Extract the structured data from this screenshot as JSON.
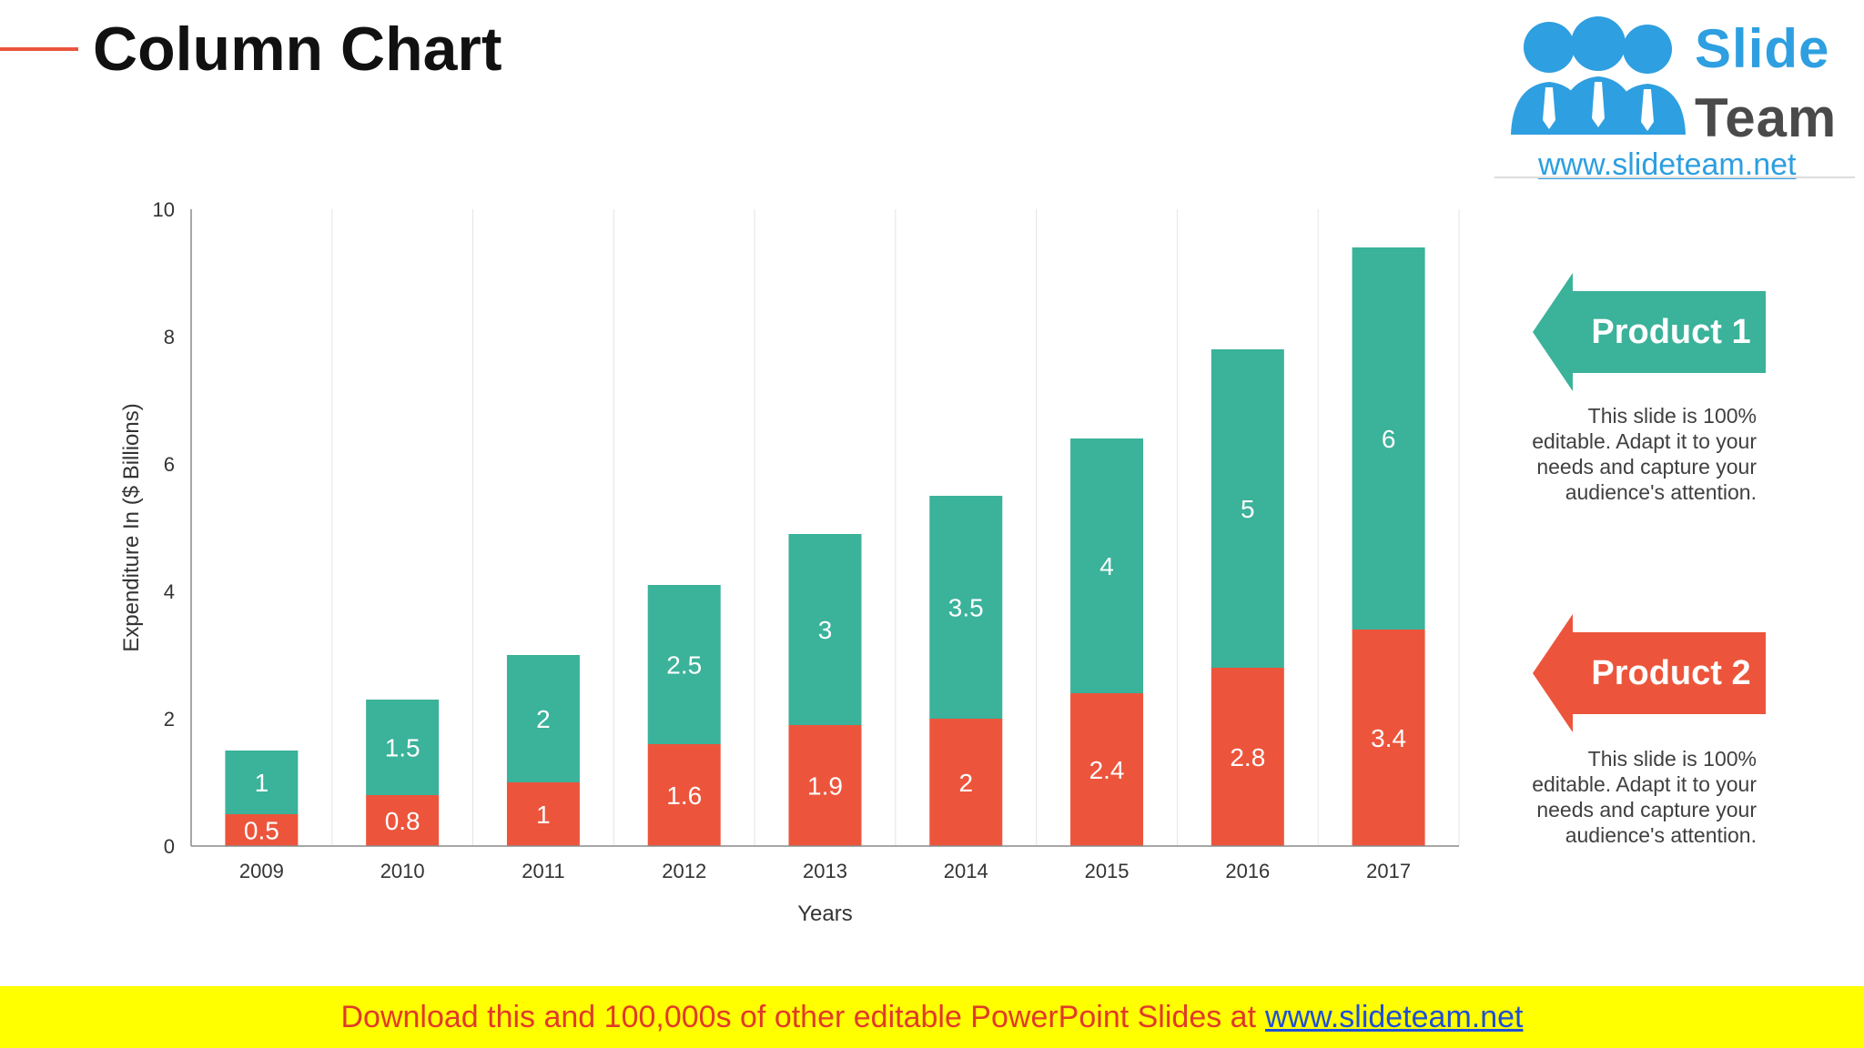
{
  "slide": {
    "title": "Column Chart"
  },
  "logo": {
    "word1": "Slide",
    "word2": "Team",
    "url": "www.slideteam.net"
  },
  "colors": {
    "product1": "#3bb29a",
    "product2": "#ec553c",
    "accent_rule": "#e9553c",
    "banner_bg": "#ffff00",
    "banner_text": "#e03a2a",
    "link": "#1f4fd6"
  },
  "callouts": [
    {
      "label": "Product 1",
      "description_lines": [
        "This slide is 100%",
        "editable. Adapt it to your",
        "needs and capture your",
        "audience's attention."
      ]
    },
    {
      "label": "Product 2",
      "description_lines": [
        "This slide is 100%",
        "editable. Adapt it to your",
        "needs and capture your",
        "audience's attention."
      ]
    }
  ],
  "banner": {
    "text": "Download this and 100,000s of other editable PowerPoint Slides at",
    "link": "www.slideteam.net"
  },
  "chart_data": {
    "type": "bar",
    "stacked": true,
    "categories": [
      "2009",
      "2010",
      "2011",
      "2012",
      "2013",
      "2014",
      "2015",
      "2016",
      "2017"
    ],
    "series": [
      {
        "name": "Product 2",
        "values": [
          0.5,
          0.8,
          1,
          1.6,
          1.9,
          2,
          2.4,
          2.8,
          3.4
        ]
      },
      {
        "name": "Product 1",
        "values": [
          1,
          1.5,
          2,
          2.5,
          3,
          3.5,
          4,
          5,
          6
        ]
      }
    ],
    "xlabel": "Years",
    "ylabel": "Expenditure In ($ Billions)",
    "ylim": [
      0,
      10
    ],
    "yticks": [
      0,
      2,
      4,
      6,
      8,
      10
    ],
    "grid": "vertical",
    "data_labels": true
  }
}
